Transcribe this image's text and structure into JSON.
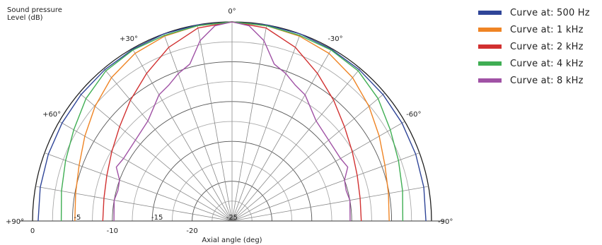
{
  "chart_data": {
    "type": "polar-line",
    "title_lines": [
      "Sound pressure",
      "Level  (dB)"
    ],
    "xlabel": "Axial angle  (deg)",
    "angle_range": [
      -90,
      90
    ],
    "angle_labels": [
      {
        "angle": 0,
        "text": "0°"
      },
      {
        "angle": 30,
        "text": "+30°"
      },
      {
        "angle": -30,
        "text": "-30°"
      },
      {
        "angle": 60,
        "text": "+60°"
      },
      {
        "angle": -60,
        "text": "-60°"
      },
      {
        "angle": 90,
        "text": "+90°"
      },
      {
        "angle": -90,
        "text": "-90°"
      }
    ],
    "radial_range_db": [
      -25,
      0
    ],
    "radial_ticks_bottom": [
      {
        "db": 0,
        "text": "0"
      },
      {
        "db": -10,
        "text": "-10"
      },
      {
        "db": -20,
        "text": "-20"
      }
    ],
    "radial_ticks_inner": [
      {
        "db": -5,
        "text": "-5"
      },
      {
        "db": -15,
        "text": "-15"
      },
      {
        "db": -25,
        "text": "-25"
      }
    ],
    "series": [
      {
        "name": "Curve at: 500 Hz",
        "color": "#2f4598",
        "points": [
          [
            0,
            0
          ],
          [
            10,
            0
          ],
          [
            20,
            0
          ],
          [
            30,
            -0.1
          ],
          [
            40,
            -0.2
          ],
          [
            50,
            -0.3
          ],
          [
            60,
            -0.4
          ],
          [
            70,
            -0.5
          ],
          [
            80,
            -0.6
          ],
          [
            90,
            -0.7
          ]
        ]
      },
      {
        "name": "Curve at: 1 kHz",
        "color": "#ef8424",
        "points": [
          [
            0,
            0
          ],
          [
            10,
            -0.1
          ],
          [
            20,
            -0.3
          ],
          [
            30,
            -0.7
          ],
          [
            40,
            -1.5
          ],
          [
            50,
            -2.6
          ],
          [
            60,
            -3.7
          ],
          [
            70,
            -4.6
          ],
          [
            80,
            -5.1
          ],
          [
            90,
            -5.3
          ]
        ]
      },
      {
        "name": "Curve at: 2 kHz",
        "color": "#d13030",
        "points": [
          [
            0,
            0
          ],
          [
            10,
            -0.4
          ],
          [
            20,
            -1.8
          ],
          [
            30,
            -3.6
          ],
          [
            40,
            -5.2
          ],
          [
            50,
            -6.6
          ],
          [
            60,
            -7.6
          ],
          [
            70,
            -8.3
          ],
          [
            80,
            -8.7
          ],
          [
            90,
            -8.8
          ]
        ]
      },
      {
        "name": "Curve at: 4 kHz",
        "color": "#3fae53",
        "points": [
          [
            0,
            0
          ],
          [
            10,
            -0.1
          ],
          [
            20,
            -0.2
          ],
          [
            30,
            -0.2
          ],
          [
            40,
            -0.4
          ],
          [
            50,
            -1.1
          ],
          [
            60,
            -2.1
          ],
          [
            70,
            -2.8
          ],
          [
            80,
            -3.3
          ],
          [
            90,
            -3.6
          ]
        ]
      },
      {
        "name": "Curve at: 8 kHz",
        "color": "#a052a5",
        "points": [
          [
            0,
            0
          ],
          [
            5,
            -0.4
          ],
          [
            10,
            -2.0
          ],
          [
            15,
            -4.6
          ],
          [
            20,
            -5.3
          ],
          [
            25,
            -6.2
          ],
          [
            30,
            -6.7
          ],
          [
            40,
            -8.6
          ],
          [
            50,
            -9.2
          ],
          [
            60,
            -9.3
          ],
          [
            65,
            -9.0
          ],
          [
            70,
            -10.0
          ],
          [
            75,
            -10.2
          ],
          [
            80,
            -10.0
          ],
          [
            90,
            -10.2
          ]
        ]
      }
    ]
  }
}
